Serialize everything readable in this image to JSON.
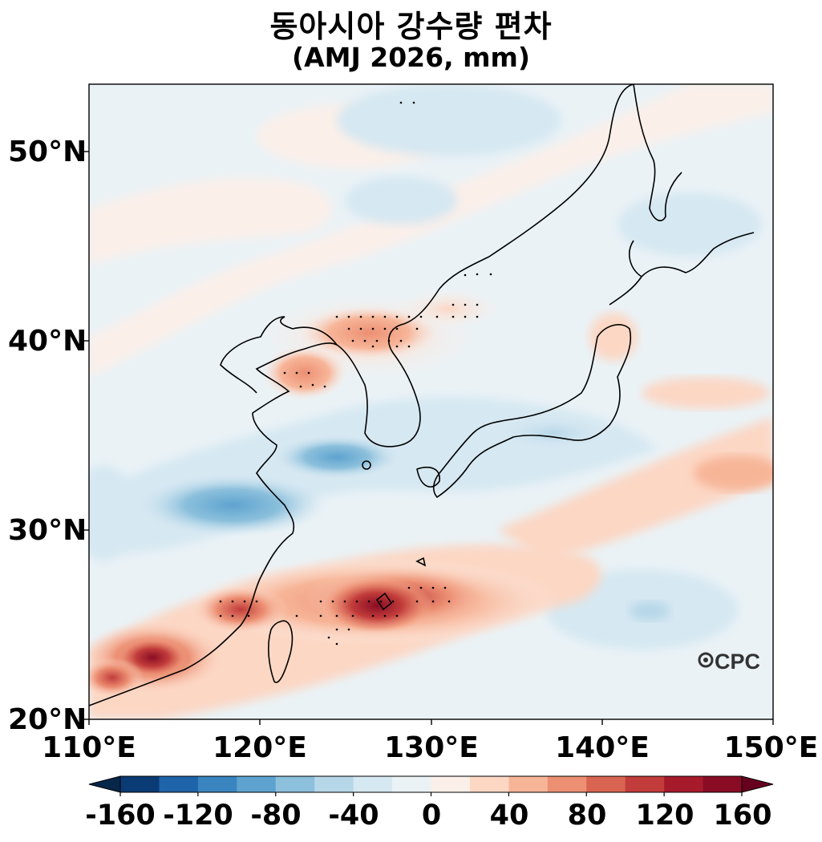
{
  "title": {
    "line1": "동아시아 강수량 편차",
    "line2": "(AMJ 2026, mm)"
  },
  "axes": {
    "lat_ticks": [
      "50°N",
      "40°N",
      "30°N",
      "20°N"
    ],
    "lon_ticks": [
      "110°E",
      "120°E",
      "130°E",
      "140°E",
      "150°E"
    ],
    "lat_range": [
      20,
      53.5
    ],
    "lon_range": [
      110,
      150
    ]
  },
  "watermark": "CPC",
  "colorbar": {
    "ticks": [
      "-160",
      "-120",
      "-80",
      "-40",
      "0",
      "40",
      "80",
      "120",
      "160"
    ],
    "levels": [
      -160,
      -140,
      -120,
      -100,
      -80,
      -60,
      -40,
      -20,
      0,
      20,
      40,
      60,
      80,
      100,
      120,
      140,
      160
    ],
    "colors": [
      "#0b3b74",
      "#1f63a8",
      "#3a85bf",
      "#5ea3cf",
      "#8cc0dc",
      "#b6d7e8",
      "#d6e8f2",
      "#eaf2f6",
      "#fbefe9",
      "#fcd7c4",
      "#f7b598",
      "#ec8f73",
      "#d86451",
      "#c13c3a",
      "#a71a2c",
      "#8a0c24"
    ],
    "extend_low": "#06264a",
    "extend_high": "#67001f"
  },
  "anomaly_regions": [
    {
      "name": "south-china-coast wet",
      "lon": 114,
      "lat": 23.5,
      "value": 140
    },
    {
      "name": "taiwan-okinawa wet",
      "lon": 126.5,
      "lat": 26,
      "value": 150
    },
    {
      "name": "south-of-korea dry",
      "lon": 122,
      "lat": 31.5,
      "value": -80
    },
    {
      "name": "korea-bohai wet",
      "lon": 126,
      "lat": 40.5,
      "value": 70
    },
    {
      "name": "south-japan dry",
      "lon": 138,
      "lat": 34.5,
      "value": -50
    }
  ]
}
